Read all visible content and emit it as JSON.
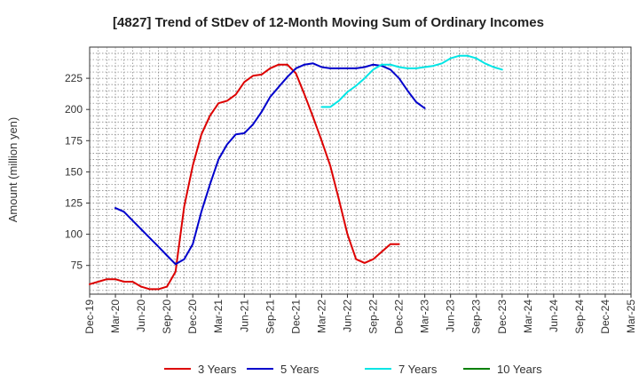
{
  "chart_data": {
    "type": "line",
    "title": "[4827]  Trend of StDev of 12-Month Moving Sum of Ordinary Incomes",
    "xlabel": "",
    "ylabel": "Amount (million yen)",
    "x_tick_labels": [
      "Dec-19",
      "Mar-20",
      "Jun-20",
      "Sep-20",
      "Dec-20",
      "Mar-21",
      "Jun-21",
      "Sep-21",
      "Dec-21",
      "Mar-22",
      "Jun-22",
      "Sep-22",
      "Dec-22",
      "Mar-23",
      "Jun-23",
      "Sep-23",
      "Dec-23",
      "Mar-24",
      "Jun-24",
      "Sep-24",
      "Dec-24",
      "Mar-25"
    ],
    "y_ticks": [
      75,
      100,
      125,
      150,
      175,
      200,
      225
    ],
    "ylim": [
      52,
      250
    ],
    "grid": true,
    "legend_position": "bottom",
    "series": [
      {
        "name": "3 Years",
        "color": "#dd0000",
        "start_index": 0,
        "values": [
          60,
          62,
          64,
          64,
          62,
          62,
          58,
          56,
          56,
          58,
          70,
          122,
          155,
          180,
          195,
          205,
          207,
          212,
          222,
          227,
          228,
          233,
          236,
          236,
          229,
          212,
          194,
          175,
          155,
          128,
          100,
          80,
          77,
          80,
          86,
          92,
          92
        ]
      },
      {
        "name": "5 Years",
        "color": "#0000cc",
        "start_index": 3,
        "values": [
          121,
          118,
          111,
          104,
          97,
          90,
          83,
          76,
          80,
          92,
          118,
          140,
          160,
          172,
          180,
          181,
          188,
          198,
          210,
          218,
          226,
          233,
          236,
          237,
          234,
          233,
          233,
          233,
          233,
          234,
          236,
          235,
          232,
          225,
          215,
          206,
          201
        ]
      },
      {
        "name": "7 Years",
        "color": "#00e5e5",
        "start_index": 27,
        "values": [
          202,
          202,
          207,
          214,
          219,
          225,
          232,
          236,
          236,
          234,
          233,
          233,
          234,
          235,
          237,
          241,
          243,
          243,
          241,
          237,
          234,
          232
        ]
      },
      {
        "name": "10 Years",
        "color": "#008000",
        "start_index": 0,
        "values": []
      }
    ]
  }
}
